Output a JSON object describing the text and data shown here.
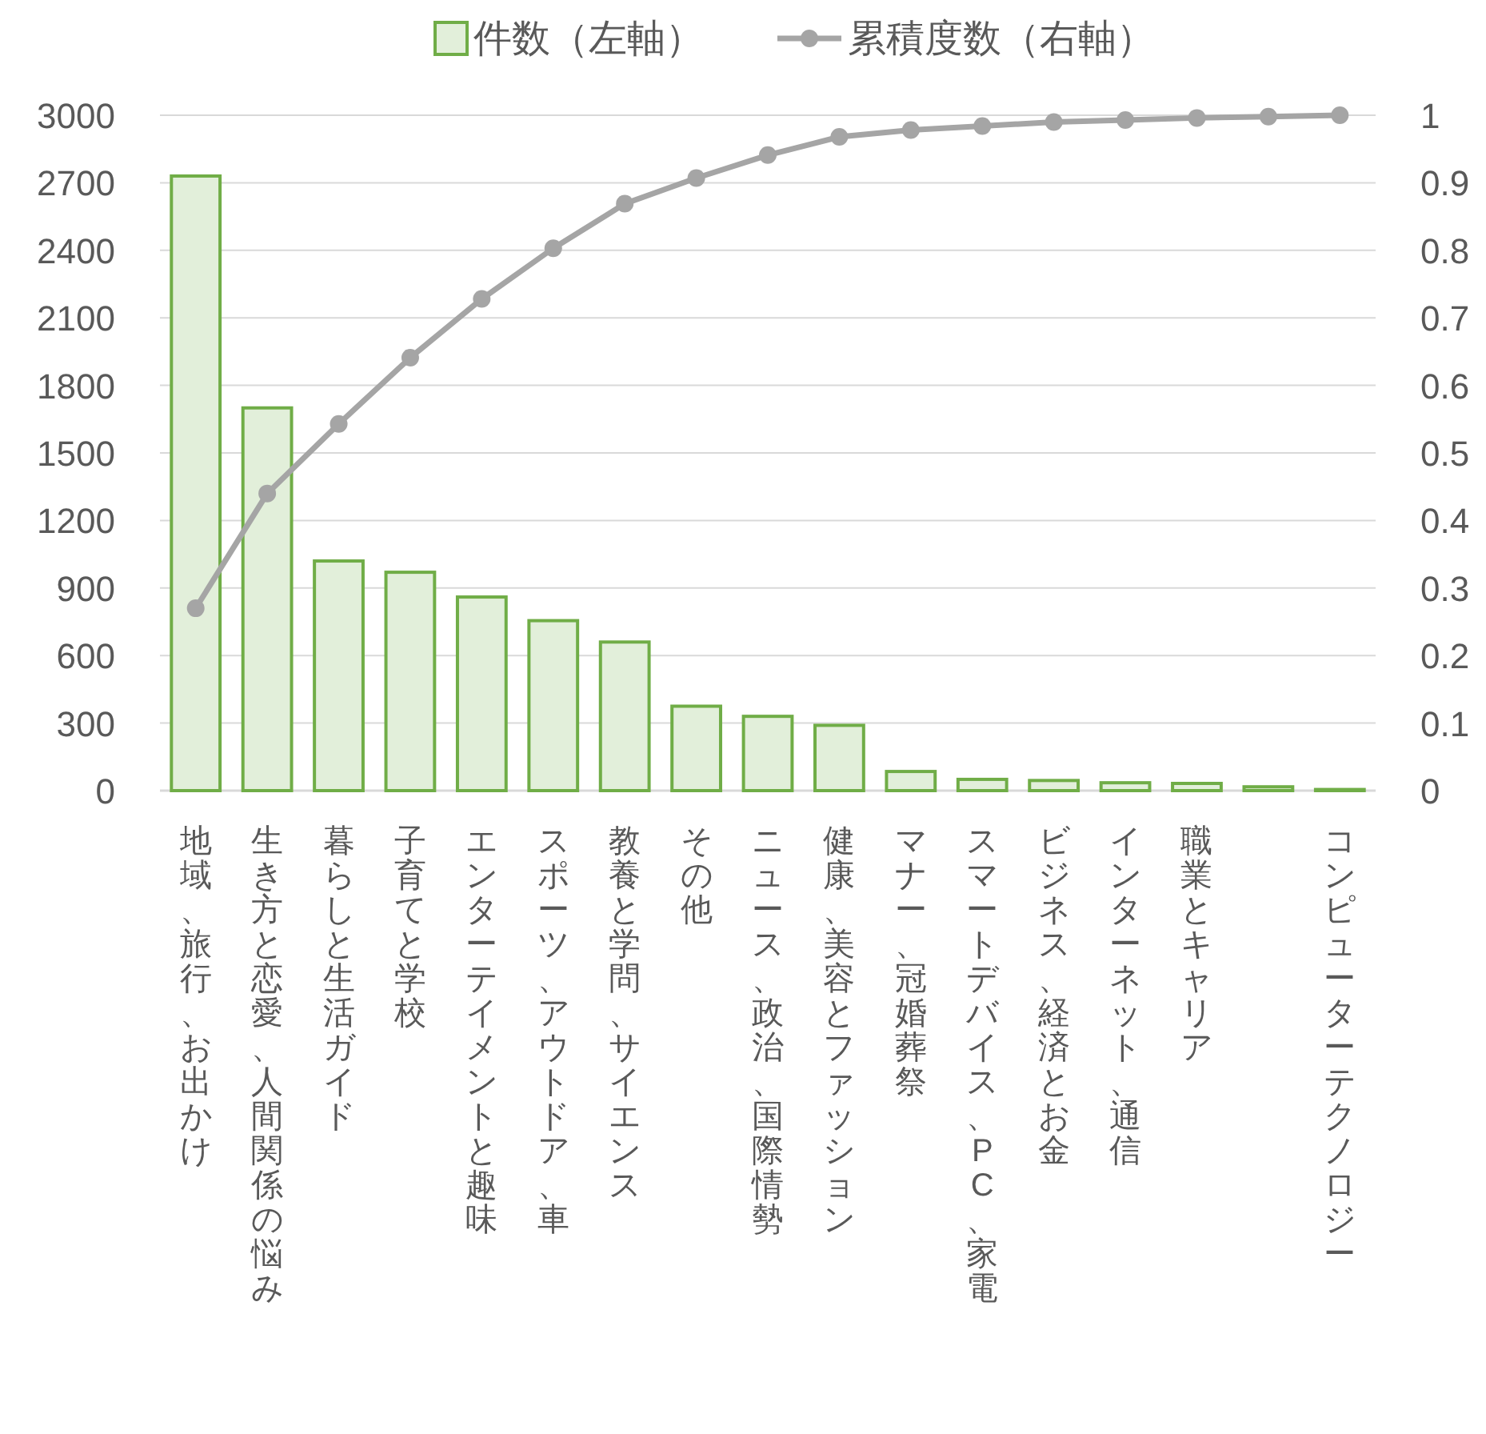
{
  "chart_data": {
    "type": "bar",
    "categories": [
      "地域、旅行、お出かけ",
      "生き方と恋愛、人間関係の悩み",
      "暮らしと生活ガイド",
      "子育てと学校",
      "エンターテイメントと趣味",
      "スポーツ、アウトドア、車",
      "教養と学問、サイエンス",
      "その他",
      "ニュース、政治、国際情勢",
      "健康、美容とファッション",
      "マナー、冠婚葬祭",
      "スマートデバイス、PC、家電",
      "ビジネス、経済とお金",
      "インターネット、通信",
      "職業とキャリア",
      null,
      "コンピューターテクノロジー"
    ],
    "series": [
      {
        "name": "件数（左軸）",
        "color": "#70ad47",
        "values": [
          2730,
          1700,
          1020,
          970,
          860,
          755,
          660,
          375,
          330,
          290,
          85,
          50,
          45,
          35,
          32,
          17,
          5
        ]
      },
      {
        "name": "累積度数（右軸）",
        "type": "line",
        "axis": "y2",
        "color": "#a5a5a5",
        "values": [
          0.27,
          0.44,
          0.543,
          0.641,
          0.728,
          0.803,
          0.869,
          0.907,
          0.941,
          0.968,
          0.978,
          0.984,
          0.99,
          0.993,
          0.996,
          0.998,
          1.0
        ]
      }
    ],
    "ylim": [
      0,
      3000
    ],
    "yticks": [
      0,
      300,
      600,
      900,
      1200,
      1500,
      1800,
      2100,
      2400,
      2700,
      3000
    ],
    "y2lim": [
      0,
      1
    ],
    "y2ticks": [
      0,
      0.1,
      0.2,
      0.3,
      0.4,
      0.5,
      0.6,
      0.7,
      0.8,
      0.9,
      1
    ],
    "grid": "y",
    "legend": "top",
    "marker": "circle",
    "line_style": "solid"
  }
}
